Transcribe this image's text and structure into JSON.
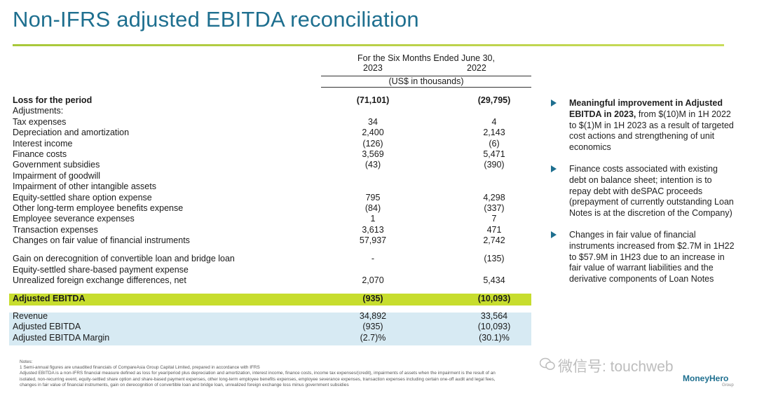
{
  "title": "Non-IFRS adjusted EBITDA reconciliation",
  "header": {
    "period": "For the Six Months Ended June 30,",
    "year1": "2023",
    "year2": "2022",
    "units": "(US$ in thousands)"
  },
  "rows": [
    {
      "label": "Loss for the period",
      "v1": "(71,101)",
      "v2": "(29,795)",
      "bold": true
    },
    {
      "label": "Adjustments:",
      "v1": "",
      "v2": ""
    },
    {
      "label": "Tax expenses",
      "v1": "34",
      "v2": "4"
    },
    {
      "label": "Depreciation and amortization",
      "v1": "2,400",
      "v2": "2,143"
    },
    {
      "label": "Interest income",
      "v1": "(126)",
      "v2": "(6)"
    },
    {
      "label": "Finance costs",
      "v1": "3,569",
      "v2": "5,471"
    },
    {
      "label": "Government subsidies",
      "v1": "(43)",
      "v2": "(390)"
    },
    {
      "label": "Impairment of goodwill",
      "v1": "",
      "v2": ""
    },
    {
      "label": "Impairment of other intangible assets",
      "v1": "",
      "v2": ""
    },
    {
      "label": "Equity-settled share option expense",
      "v1": "795",
      "v2": "4,298"
    },
    {
      "label": "Other long-term employee benefits expense",
      "v1": "(84)",
      "v2": "(337)"
    },
    {
      "label": "Employee severance expenses",
      "v1": "1",
      "v2": "7"
    },
    {
      "label": "Transaction expenses",
      "v1": "3,613",
      "v2": "471"
    },
    {
      "label": "Changes on fair value of financial instruments",
      "v1": "57,937",
      "v2": "2,742"
    },
    {
      "label": "Gain on derecognition of convertible loan and bridge loan",
      "v1": "-",
      "v2": "(135)"
    },
    {
      "label": "Equity-settled share-based payment expense",
      "v1": "",
      "v2": ""
    },
    {
      "label": "Unrealized foreign exchange differences, net",
      "v1": "2,070",
      "v2": "5,434"
    }
  ],
  "adjusted": {
    "label": "Adjusted EBITDA",
    "v1": "(935)",
    "v2": "(10,093)"
  },
  "summary": [
    {
      "label": "Revenue",
      "v1": "34,892",
      "v2": "33,564"
    },
    {
      "label": "Adjusted EBITDA",
      "v1": "(935)",
      "v2": "(10,093)"
    },
    {
      "label": "Adjusted EBITDA Margin",
      "v1": "(2.7)%",
      "v2": "(30.1)%"
    }
  ],
  "bullets": [
    {
      "bold": "Meaningful improvement in Adjusted EBITDA in 2023,",
      "text": " from $(10)M in 1H 2022 to $(1)M in 1H 2023 as a result of targeted cost actions and strengthening of unit economics"
    },
    {
      "bold": "",
      "text": "Finance costs associated with existing debt on balance sheet; intention is to repay debt with deSPAC proceeds (prepayment of currently outstanding Loan Notes is at the discretion of the Company)"
    },
    {
      "bold": "",
      "text": "Changes in fair value of financial instruments increased from $2.7M in 1H22 to $57.9M in 1H23 due to an increase in fair value of warrant liabilities and the derivative components of Loan Notes"
    }
  ],
  "notes": {
    "heading": "Notes:",
    "n1": "1    Semi-annual figures are unaudited financials of CompareAsia Group Capital Limited, prepared in accordance with IFRS",
    "n2": "      Adjusted EBITDA is a non-IFRS financial measure defined as loss for year/period plus depreciation and amortization, interest income, finance costs, income tax expenses/(credit), impairments of assets when the impairment is the result of an",
    "n3": "      isolated, non-recurring event, equity-settled share option and share-based payment expenses, other long-term employee benefits expenses, employee severance expenses, transaction expenses including certain one-off audit and legal fees,",
    "n4": "      changes in fair value of financial instruments, gain on derecognition of convertible loan and bridge loan, unrealized foreign exchange loss minus government subsidies"
  },
  "watermark": "微信号: touchweb",
  "logo": {
    "name": "MoneyHero",
    "sub": "Group"
  },
  "colors": {
    "title": "#1e6f8f",
    "ebitda_band": "#c7dd2e",
    "summary_band": "#d7eaf3",
    "rule": "#a8c83a"
  }
}
